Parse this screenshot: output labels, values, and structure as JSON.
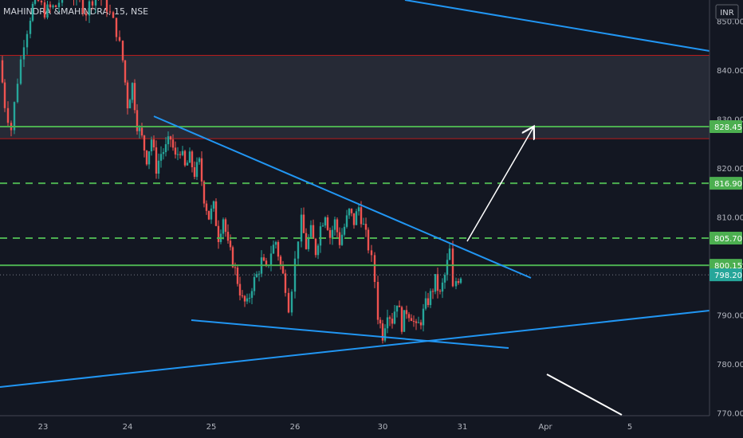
{
  "header": {
    "symbol": "MAHINDRA &MAHINDRA, 15, NSE",
    "currency": "INR"
  },
  "colors": {
    "background": "#131722",
    "up": "#26a69a",
    "down": "#ef5350",
    "support_line": "#4caf50",
    "trend_line": "#2196f3",
    "zone_fill": "#2a2e39",
    "zone_border": "#b71c1c",
    "current_price_label": "#26a69a",
    "arrow": "#ffffff"
  },
  "chart_data": {
    "type": "candlestick",
    "ylim": [
      768,
      856
    ],
    "x_ticks": [
      "23",
      "24",
      "25",
      "26",
      "30",
      "31",
      "Apr",
      "5"
    ],
    "y_ticks": [
      770,
      780,
      790,
      800,
      810,
      820,
      830,
      840,
      850
    ],
    "y_tick_labels": [
      "770.00",
      "780.00",
      "790.00",
      "800.00",
      "810.00",
      "820.00",
      "830.00",
      "840.00",
      "850.00"
    ],
    "price_labels": [
      {
        "value": 828.45,
        "label": "828.45",
        "style": "solid"
      },
      {
        "value": 816.9,
        "label": "816.90",
        "style": "dashed"
      },
      {
        "value": 805.7,
        "label": "805.70",
        "style": "dashed"
      },
      {
        "value": 800.15,
        "label": "800.15",
        "style": "solid"
      },
      {
        "value": 798.2,
        "label": "798.20",
        "style": "current"
      }
    ],
    "resistance_zone": [
      826,
      843
    ],
    "candles_close_path": [
      [
        0,
        842
      ],
      [
        6,
        833
      ],
      [
        14,
        828
      ],
      [
        22,
        838
      ],
      [
        30,
        846
      ],
      [
        38,
        851
      ],
      [
        44,
        855
      ],
      [
        56,
        852
      ],
      [
        70,
        853
      ],
      [
        82,
        856
      ],
      [
        96,
        855
      ],
      [
        108,
        852
      ],
      [
        120,
        856
      ],
      [
        134,
        853
      ],
      [
        146,
        848
      ],
      [
        154,
        842
      ],
      [
        160,
        833
      ],
      [
        166,
        837
      ],
      [
        172,
        829
      ],
      [
        178,
        826
      ],
      [
        184,
        822
      ],
      [
        190,
        826
      ],
      [
        196,
        820
      ],
      [
        202,
        823
      ],
      [
        208,
        824
      ],
      [
        214,
        826
      ],
      [
        220,
        822
      ],
      [
        226,
        824
      ],
      [
        232,
        820
      ],
      [
        238,
        822
      ],
      [
        244,
        819
      ],
      [
        250,
        821
      ],
      [
        256,
        814
      ],
      [
        262,
        810
      ],
      [
        268,
        812
      ],
      [
        274,
        806
      ],
      [
        280,
        810
      ],
      [
        286,
        804
      ],
      [
        292,
        801
      ],
      [
        298,
        797
      ],
      [
        304,
        793
      ],
      [
        310,
        792
      ],
      [
        316,
        796
      ],
      [
        322,
        798
      ],
      [
        328,
        801
      ],
      [
        334,
        799
      ],
      [
        340,
        803
      ],
      [
        346,
        805
      ],
      [
        352,
        800
      ],
      [
        358,
        796
      ],
      [
        362,
        792
      ],
      [
        366,
        796
      ],
      [
        370,
        801
      ],
      [
        374,
        806
      ],
      [
        378,
        809
      ],
      [
        384,
        804
      ],
      [
        390,
        807
      ],
      [
        396,
        803
      ],
      [
        402,
        808
      ],
      [
        408,
        811
      ],
      [
        414,
        806
      ],
      [
        420,
        809
      ],
      [
        426,
        805
      ],
      [
        432,
        808
      ],
      [
        438,
        811
      ],
      [
        444,
        809
      ],
      [
        450,
        812
      ],
      [
        456,
        808
      ],
      [
        462,
        804
      ],
      [
        466,
        801
      ],
      [
        470,
        797
      ],
      [
        474,
        790
      ],
      [
        480,
        786
      ],
      [
        486,
        791
      ],
      [
        492,
        789
      ],
      [
        498,
        793
      ],
      [
        504,
        788
      ],
      [
        510,
        791
      ],
      [
        516,
        790
      ],
      [
        522,
        787
      ],
      [
        528,
        789
      ],
      [
        534,
        792
      ],
      [
        540,
        794
      ],
      [
        546,
        797
      ],
      [
        552,
        794
      ],
      [
        558,
        798
      ],
      [
        564,
        803
      ],
      [
        568,
        795
      ],
      [
        572,
        797
      ],
      [
        578,
        798.2
      ]
    ],
    "trend_lines": [
      {
        "name": "upper-downtrend",
        "from": [
          193,
          0
        ],
        "to": [
          666,
          0
        ]
      },
      {
        "name": "lower-wedge",
        "from": [
          240,
          0
        ],
        "to": [
          638,
          0
        ]
      },
      {
        "name": "rising-support",
        "from": [
          0,
          0
        ],
        "to": [
          890,
          0
        ]
      },
      {
        "name": "top-downtrend",
        "from": [
          508,
          0
        ],
        "to": [
          890,
          0
        ]
      }
    ]
  }
}
